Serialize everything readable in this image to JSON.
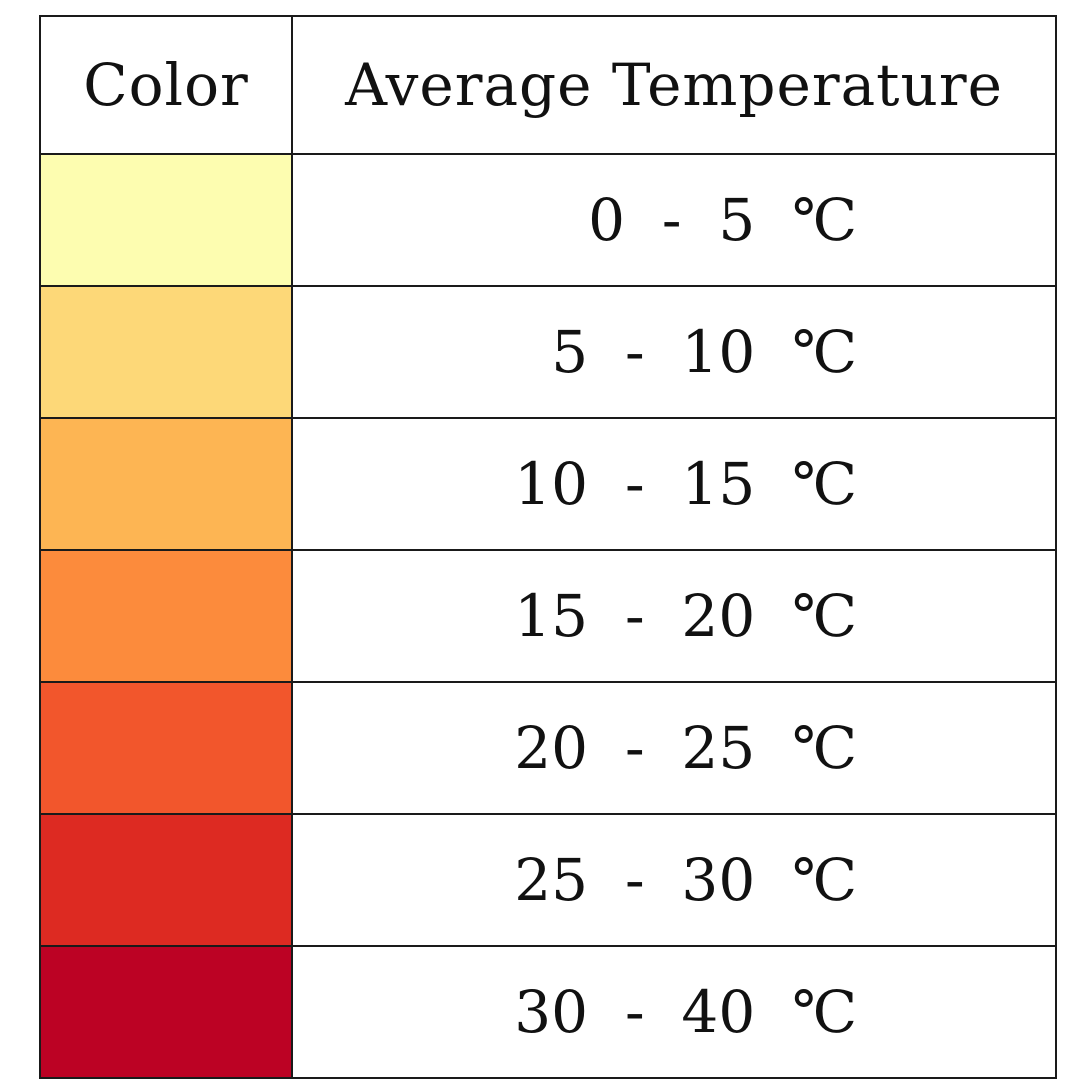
{
  "chart_data": {
    "type": "table",
    "columns": [
      "Color",
      "Average Temperature"
    ],
    "rows": [
      {
        "color": "#fdfdb0",
        "range": "0  -  5  ℃"
      },
      {
        "color": "#fdd878",
        "range": "5  -  10  ℃"
      },
      {
        "color": "#fdb553",
        "range": "10  -  15  ℃"
      },
      {
        "color": "#fc8b3c",
        "range": "15  -  20  ℃"
      },
      {
        "color": "#f2562c",
        "range": "20  -  25  ℃"
      },
      {
        "color": "#dd2a22",
        "range": "25  -  30  ℃"
      },
      {
        "color": "#bc0224",
        "range": "30  -  40  ℃"
      }
    ]
  }
}
